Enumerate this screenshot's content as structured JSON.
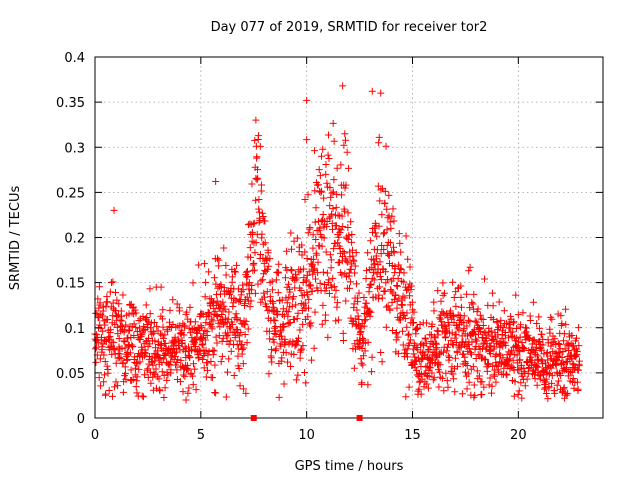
{
  "chart_data": {
    "type": "scatter",
    "title": "Day 077 of 2019, SRMTID for receiver tor2",
    "xlabel": "GPS time / hours",
    "ylabel": "SRMTID / TECUs",
    "xlim": [
      0,
      24
    ],
    "ylim": [
      0,
      0.4
    ],
    "x_ticks": [
      0,
      5,
      10,
      15,
      20
    ],
    "x_tick_labels": [
      "0",
      "5",
      "10",
      "15",
      "20"
    ],
    "y_ticks": [
      0,
      0.05,
      0.1,
      0.15,
      0.2,
      0.25,
      0.3,
      0.35,
      0.4
    ],
    "y_tick_labels": [
      "0",
      "0.05",
      "0.1",
      "0.15",
      "0.2",
      "0.25",
      "0.3",
      "0.35",
      "0.4"
    ],
    "grid": true,
    "marker": "plus",
    "marker_color": "#ff0000",
    "x_axis_markers": [
      7.5,
      12.5
    ],
    "series": [
      {
        "name": "SRMTID",
        "trend": [
          {
            "x": 0.0,
            "y": 0.095,
            "s": 0.03
          },
          {
            "x": 1.0,
            "y": 0.09,
            "s": 0.03
          },
          {
            "x": 2.0,
            "y": 0.085,
            "s": 0.028
          },
          {
            "x": 3.0,
            "y": 0.075,
            "s": 0.022
          },
          {
            "x": 4.0,
            "y": 0.075,
            "s": 0.022
          },
          {
            "x": 5.0,
            "y": 0.09,
            "s": 0.028
          },
          {
            "x": 6.0,
            "y": 0.12,
            "s": 0.035
          },
          {
            "x": 7.0,
            "y": 0.1,
            "s": 0.03
          },
          {
            "x": 7.7,
            "y": 0.24,
            "s": 0.045
          },
          {
            "x": 8.3,
            "y": 0.11,
            "s": 0.03
          },
          {
            "x": 9.0,
            "y": 0.11,
            "s": 0.035
          },
          {
            "x": 10.0,
            "y": 0.15,
            "s": 0.05
          },
          {
            "x": 11.0,
            "y": 0.21,
            "s": 0.055
          },
          {
            "x": 12.0,
            "y": 0.19,
            "s": 0.05
          },
          {
            "x": 12.5,
            "y": 0.08,
            "s": 0.03
          },
          {
            "x": 13.5,
            "y": 0.2,
            "s": 0.05
          },
          {
            "x": 14.5,
            "y": 0.13,
            "s": 0.04
          },
          {
            "x": 15.3,
            "y": 0.06,
            "s": 0.02
          },
          {
            "x": 16.0,
            "y": 0.07,
            "s": 0.025
          },
          {
            "x": 17.0,
            "y": 0.1,
            "s": 0.03
          },
          {
            "x": 18.0,
            "y": 0.085,
            "s": 0.028
          },
          {
            "x": 19.0,
            "y": 0.08,
            "s": 0.025
          },
          {
            "x": 20.0,
            "y": 0.075,
            "s": 0.025
          },
          {
            "x": 21.0,
            "y": 0.065,
            "s": 0.022
          },
          {
            "x": 22.0,
            "y": 0.06,
            "s": 0.022
          },
          {
            "x": 22.9,
            "y": 0.06,
            "s": 0.02
          }
        ],
        "notable_points": [
          {
            "x": 11.7,
            "y": 0.368
          },
          {
            "x": 13.1,
            "y": 0.362
          },
          {
            "x": 13.5,
            "y": 0.36
          },
          {
            "x": 10.0,
            "y": 0.352
          },
          {
            "x": 7.6,
            "y": 0.33
          },
          {
            "x": 11.8,
            "y": 0.315
          },
          {
            "x": 13.4,
            "y": 0.305
          },
          {
            "x": 10.7,
            "y": 0.29
          },
          {
            "x": 5.7,
            "y": 0.262
          },
          {
            "x": 0.9,
            "y": 0.23
          },
          {
            "x": 4.3,
            "y": 0.02
          },
          {
            "x": 17.9,
            "y": 0.023
          }
        ]
      }
    ]
  }
}
